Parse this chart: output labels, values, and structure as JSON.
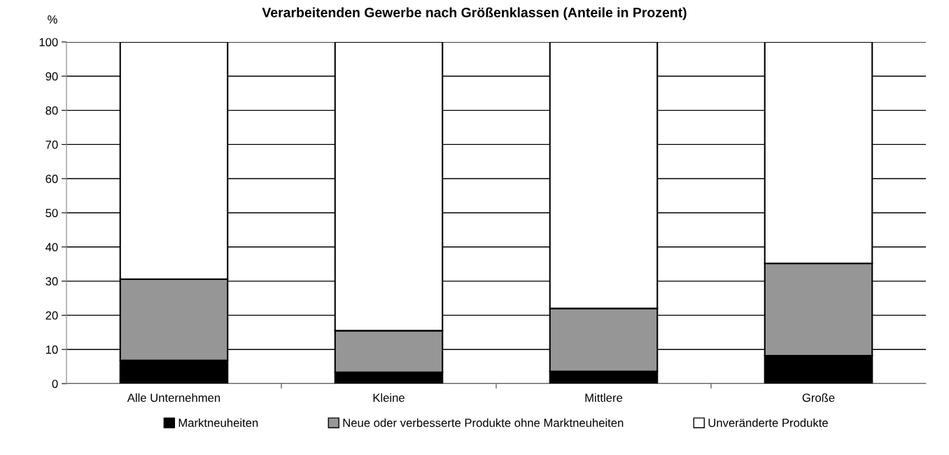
{
  "chart_data": {
    "type": "bar",
    "title": "Verarbeitenden Gewerbe nach Größenklassen (Anteile in Prozent)",
    "ylabel": "%",
    "categories": [
      "Alle Unternehmen",
      "Kleine",
      "Mittlere",
      "Große"
    ],
    "stacked": true,
    "series": [
      {
        "name": "Marktneuheiten",
        "color": "#000000",
        "values": [
          6.8,
          3.3,
          3.6,
          8.2
        ]
      },
      {
        "name": "Neue oder verbesserte Produkte ohne Marktneuheiten",
        "color": "#969696",
        "values": [
          23.8,
          12.2,
          18.4,
          27.0
        ]
      },
      {
        "name": "Unveränderte Produkte",
        "color": "#ffffff",
        "values": [
          69.4,
          84.5,
          78.0,
          64.8
        ]
      }
    ],
    "ylim": [
      0,
      100
    ],
    "yticks": [
      0,
      10,
      20,
      30,
      40,
      50,
      60,
      70,
      80,
      90,
      100
    ],
    "grid": "y",
    "legend": "bottom"
  }
}
